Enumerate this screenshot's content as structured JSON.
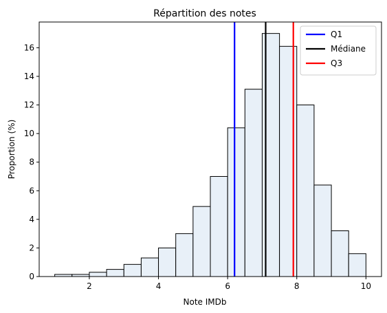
{
  "chart_data": {
    "type": "bar",
    "title": "Répartition des notes",
    "xlabel": "Note IMDb",
    "ylabel": "Proportion (%)",
    "xlim": [
      0.55,
      10.45
    ],
    "ylim": [
      0,
      17.8
    ],
    "xticks": [
      2,
      4,
      6,
      8,
      10
    ],
    "yticks": [
      0,
      2,
      4,
      6,
      8,
      10,
      12,
      14,
      16
    ],
    "bin_width": 0.5,
    "bins": [
      {
        "x0": 1.0,
        "x1": 1.5,
        "value": 0.15
      },
      {
        "x0": 1.5,
        "x1": 2.0,
        "value": 0.15
      },
      {
        "x0": 2.0,
        "x1": 2.5,
        "value": 0.3
      },
      {
        "x0": 2.5,
        "x1": 3.0,
        "value": 0.5
      },
      {
        "x0": 3.0,
        "x1": 3.5,
        "value": 0.85
      },
      {
        "x0": 3.5,
        "x1": 4.0,
        "value": 1.3
      },
      {
        "x0": 4.0,
        "x1": 4.5,
        "value": 2.0
      },
      {
        "x0": 4.5,
        "x1": 5.0,
        "value": 3.0
      },
      {
        "x0": 5.0,
        "x1": 5.5,
        "value": 4.9
      },
      {
        "x0": 5.5,
        "x1": 6.0,
        "value": 7.0
      },
      {
        "x0": 6.0,
        "x1": 6.5,
        "value": 10.4
      },
      {
        "x0": 6.5,
        "x1": 7.0,
        "value": 13.1
      },
      {
        "x0": 7.0,
        "x1": 7.5,
        "value": 17.0
      },
      {
        "x0": 7.5,
        "x1": 8.0,
        "value": 16.1
      },
      {
        "x0": 8.0,
        "x1": 8.5,
        "value": 12.0
      },
      {
        "x0": 8.5,
        "x1": 9.0,
        "value": 6.4
      },
      {
        "x0": 9.0,
        "x1": 9.5,
        "value": 3.2
      },
      {
        "x0": 9.5,
        "x1": 10.0,
        "value": 1.6
      }
    ],
    "bar_fill": "#e8f0f8",
    "bar_edge": "#000000",
    "lines": [
      {
        "name": "Q1",
        "x": 6.2,
        "color": "#0000ff"
      },
      {
        "name": "Médiane",
        "x": 7.1,
        "color": "#000000"
      },
      {
        "name": "Q3",
        "x": 7.9,
        "color": "#ff0000"
      }
    ],
    "legend_position": "top-right",
    "grid": false
  }
}
